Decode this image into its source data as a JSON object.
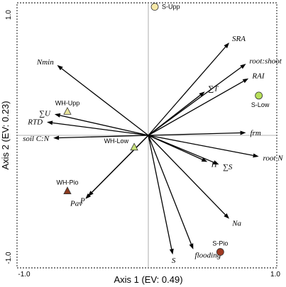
{
  "chart_data": {
    "type": "scatter",
    "subtype": "ordination-biplot",
    "xlabel": "Axis 1 (EV: 0.49)",
    "ylabel": "Axis 2 (EV: 0.23)",
    "xlim": [
      -1.0,
      1.0
    ],
    "ylim": [
      -1.0,
      1.0
    ],
    "x_ticks": [
      "-1.0",
      "1.0"
    ],
    "y_ticks": [
      "1.0",
      "-1.0"
    ],
    "reference_lines": "dotted zero lines",
    "vectors": [
      {
        "label": "SRA",
        "x": 0.63,
        "y": 0.7
      },
      {
        "label": "root:shoot",
        "x": 0.76,
        "y": 0.54
      },
      {
        "label": "RAI",
        "x": 0.78,
        "y": 0.43
      },
      {
        "label": "∑T",
        "x": 0.44,
        "y": 0.33
      },
      {
        "label": "frm",
        "x": 0.76,
        "y": 0.02
      },
      {
        "label": "root N",
        "x": 0.86,
        "y": -0.16
      },
      {
        "label": "∑S",
        "x": 0.55,
        "y": -0.22
      },
      {
        "label": "H",
        "x": 0.46,
        "y": -0.2
      },
      {
        "label": "Na",
        "x": 0.63,
        "y": -0.63
      },
      {
        "label": "flooding",
        "x": 0.35,
        "y": -0.86
      },
      {
        "label": "S",
        "x": 0.19,
        "y": -0.9
      },
      {
        "label": "P",
        "x": -0.47,
        "y": -0.46
      },
      {
        "label": "Pav",
        "x": -0.49,
        "y": -0.48
      },
      {
        "label": "soil C:N",
        "x": -0.74,
        "y": -0.02
      },
      {
        "label": "RTD",
        "x": -0.79,
        "y": 0.1
      },
      {
        "label": "∑U",
        "x": -0.73,
        "y": 0.16
      },
      {
        "label": "Nmin",
        "x": -0.71,
        "y": 0.53
      }
    ],
    "sites": [
      {
        "label": "S-Upp",
        "x": 0.05,
        "y": 0.97,
        "shape": "circle",
        "color": "#f7e9a8"
      },
      {
        "label": "S-Low",
        "x": 0.86,
        "y": 0.3,
        "shape": "circle",
        "color": "#b7e05a"
      },
      {
        "label": "S-Pio",
        "x": 0.56,
        "y": -0.88,
        "shape": "circle",
        "color": "#a03a22"
      },
      {
        "label": "WH-Upp",
        "x": -0.63,
        "y": 0.18,
        "shape": "triangle",
        "color": "#e8e39a"
      },
      {
        "label": "WH-Low",
        "x": -0.11,
        "y": -0.09,
        "shape": "triangle",
        "color": "#c9e27a"
      },
      {
        "label": "WH-Pio",
        "x": -0.63,
        "y": -0.42,
        "shape": "triangle",
        "color": "#8b3a1e"
      }
    ]
  }
}
